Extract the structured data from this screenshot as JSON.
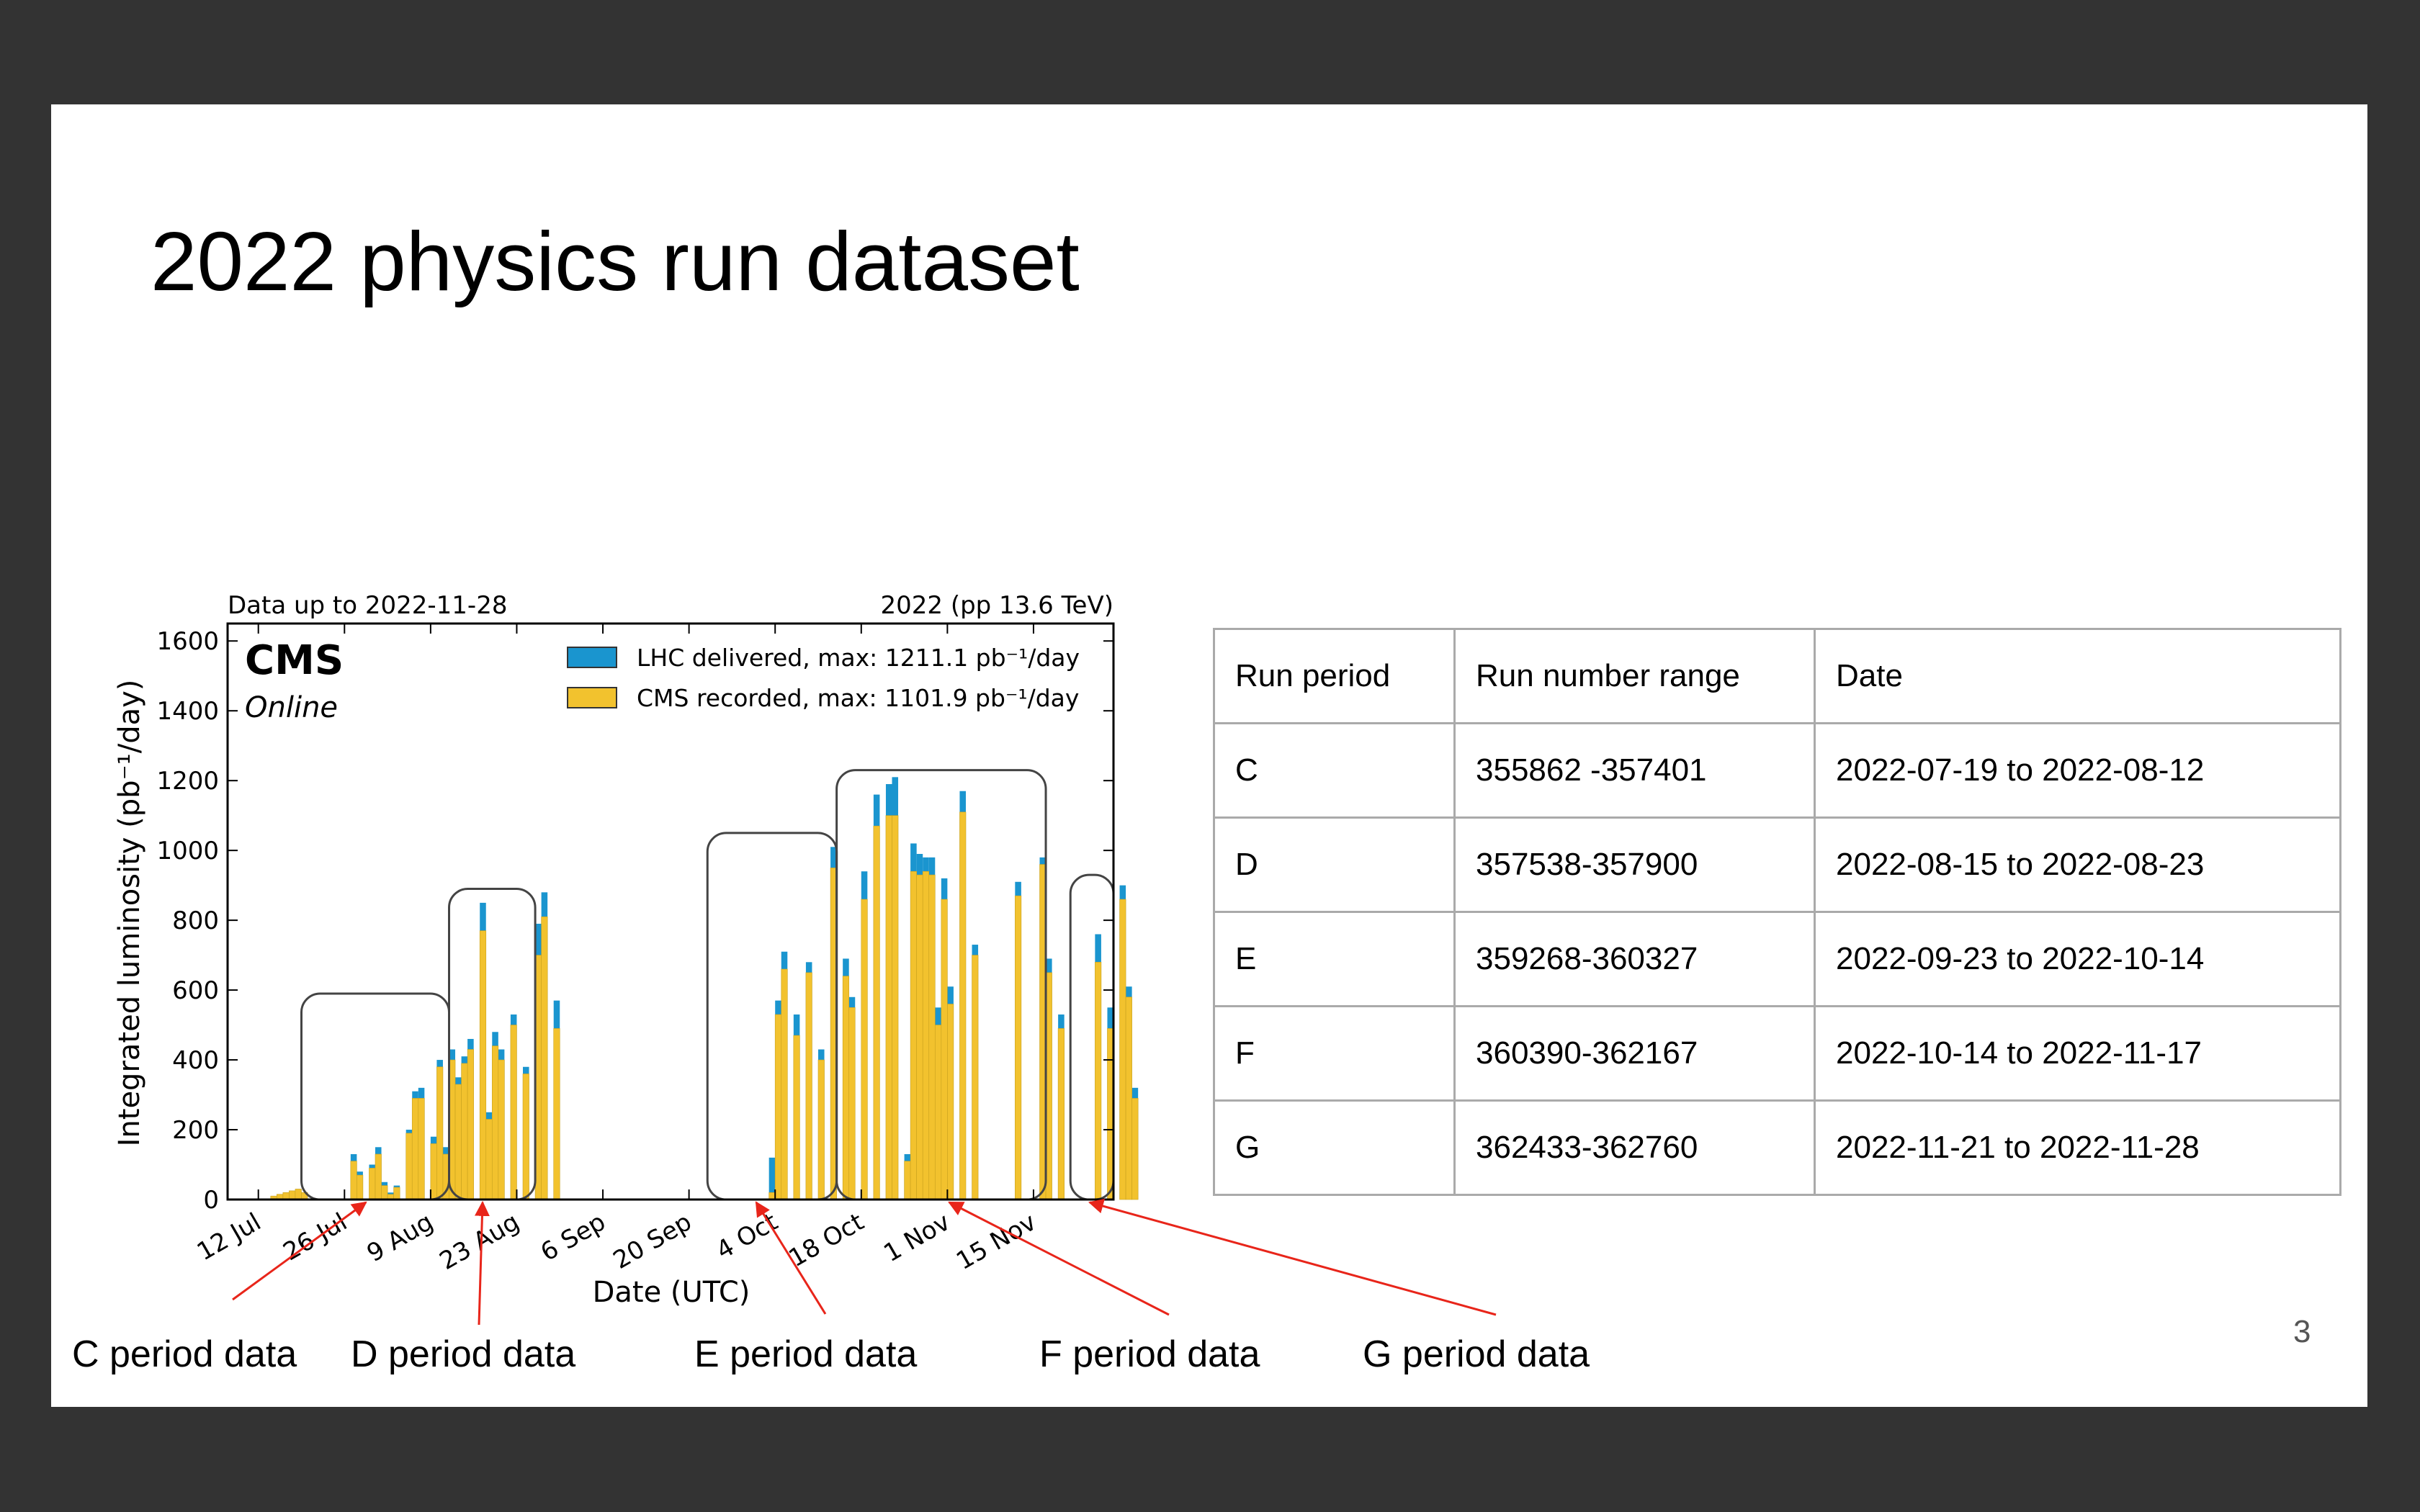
{
  "slide": {
    "title": "2022 physics run dataset",
    "page_number": "3"
  },
  "chart_data": {
    "type": "bar",
    "top_left_note": "Data up to 2022-11-28",
    "top_right_note": "2022 (pp 13.6 TeV)",
    "experiment_label": "CMS",
    "status_label": "Online",
    "xlabel": "Date (UTC)",
    "ylabel": "Integrated luminosity (pb⁻¹/day)",
    "ylim": [
      0,
      1650
    ],
    "yticks": [
      "0",
      "200",
      "400",
      "600",
      "800",
      "1000",
      "1200",
      "1400",
      "1600"
    ],
    "xlim": [
      "2022-07-07",
      "2022-11-28"
    ],
    "xticks": [
      {
        "label": "12 Jul",
        "date": "2022-07-12"
      },
      {
        "label": "26 Jul",
        "date": "2022-07-26"
      },
      {
        "label": "9 Aug",
        "date": "2022-08-09"
      },
      {
        "label": "23 Aug",
        "date": "2022-08-23"
      },
      {
        "label": "6 Sep",
        "date": "2022-09-06"
      },
      {
        "label": "20 Sep",
        "date": "2022-09-20"
      },
      {
        "label": "4 Oct",
        "date": "2022-10-04"
      },
      {
        "label": "18 Oct",
        "date": "2022-10-18"
      },
      {
        "label": "1 Nov",
        "date": "2022-11-01"
      },
      {
        "label": "15 Nov",
        "date": "2022-11-15"
      }
    ],
    "legend_position": "top-right",
    "series": [
      {
        "name": "LHC delivered, max: 1211.1 pb⁻¹/day",
        "color": "#1a95cf"
      },
      {
        "name": "CMS recorded, max: 1101.9 pb⁻¹/day",
        "color": "#f2c22e"
      }
    ],
    "start_date": "2022-07-07",
    "delivered": [
      0,
      0,
      0,
      0,
      0,
      0,
      0,
      10,
      15,
      20,
      25,
      30,
      20,
      0,
      0,
      0,
      0,
      0,
      0,
      0,
      130,
      80,
      0,
      100,
      150,
      50,
      20,
      40,
      0,
      200,
      310,
      320,
      0,
      180,
      400,
      150,
      430,
      350,
      410,
      460,
      0,
      850,
      250,
      480,
      430,
      0,
      530,
      0,
      380,
      0,
      790,
      880,
      0,
      570,
      0,
      0,
      0,
      0,
      0,
      0,
      0,
      0,
      0,
      0,
      0,
      0,
      0,
      0,
      0,
      0,
      0,
      0,
      0,
      0,
      0,
      0,
      0,
      0,
      0,
      0,
      0,
      0,
      0,
      0,
      0,
      0,
      0,
      0,
      120,
      570,
      710,
      0,
      530,
      0,
      680,
      0,
      430,
      0,
      1010,
      0,
      690,
      580,
      0,
      940,
      0,
      1160,
      0,
      1190,
      1210,
      0,
      130,
      1020,
      990,
      980,
      980,
      550,
      920,
      610,
      0,
      1170,
      0,
      730,
      0,
      0,
      0,
      0,
      0,
      0,
      910,
      0,
      0,
      0,
      980,
      690,
      0,
      530,
      0,
      0,
      0,
      0,
      0,
      760,
      0,
      550,
      0,
      900,
      610,
      320
    ],
    "recorded": [
      0,
      0,
      0,
      0,
      0,
      0,
      0,
      10,
      15,
      20,
      25,
      30,
      20,
      0,
      0,
      0,
      0,
      0,
      0,
      0,
      110,
      70,
      0,
      90,
      130,
      40,
      15,
      35,
      0,
      190,
      290,
      290,
      0,
      160,
      380,
      130,
      400,
      330,
      390,
      430,
      0,
      770,
      230,
      440,
      400,
      0,
      500,
      0,
      360,
      0,
      700,
      810,
      0,
      490,
      0,
      0,
      0,
      0,
      0,
      0,
      0,
      0,
      0,
      0,
      0,
      0,
      0,
      0,
      0,
      0,
      0,
      0,
      0,
      0,
      0,
      0,
      0,
      0,
      0,
      0,
      0,
      0,
      0,
      0,
      0,
      0,
      0,
      0,
      20,
      530,
      660,
      0,
      470,
      0,
      650,
      0,
      400,
      0,
      950,
      0,
      640,
      550,
      0,
      860,
      0,
      1070,
      0,
      1100,
      1100,
      0,
      110,
      940,
      930,
      940,
      930,
      500,
      860,
      560,
      0,
      1110,
      0,
      700,
      0,
      0,
      0,
      0,
      0,
      0,
      870,
      0,
      0,
      0,
      960,
      650,
      0,
      490,
      0,
      0,
      0,
      0,
      0,
      680,
      0,
      490,
      0,
      860,
      580,
      290
    ],
    "highlight_boxes": [
      {
        "from": "2022-07-19",
        "to": "2022-08-12",
        "top": 590
      },
      {
        "from": "2022-08-12",
        "to": "2022-08-26",
        "top": 890
      },
      {
        "from": "2022-09-23",
        "to": "2022-10-14",
        "top": 1050
      },
      {
        "from": "2022-10-14",
        "to": "2022-11-17",
        "top": 1230
      },
      {
        "from": "2022-11-21",
        "to": "2022-11-28",
        "top": 930
      }
    ]
  },
  "table": {
    "headers": [
      "Run period",
      "Run number range",
      "Date"
    ],
    "rows": [
      [
        "C",
        "355862 -357401",
        "2022-07-19 to 2022-08-12"
      ],
      [
        "D",
        "357538-357900",
        "2022-08-15 to 2022-08-23"
      ],
      [
        "E",
        "359268-360327",
        "2022-09-23 to 2022-10-14"
      ],
      [
        "F",
        "360390-362167",
        "2022-10-14 to 2022-11-17"
      ],
      [
        "G",
        "362433-362760",
        "2022-11-21 to 2022-11-28"
      ]
    ]
  },
  "annotations": [
    {
      "label": "C period data",
      "arrow_color": "#e8251a"
    },
    {
      "label": "D period data",
      "arrow_color": "#e8251a"
    },
    {
      "label": "E period data",
      "arrow_color": "#e8251a"
    },
    {
      "label": "F period data",
      "arrow_color": "#e8251a"
    },
    {
      "label": "G period data",
      "arrow_color": "#e8251a"
    }
  ]
}
